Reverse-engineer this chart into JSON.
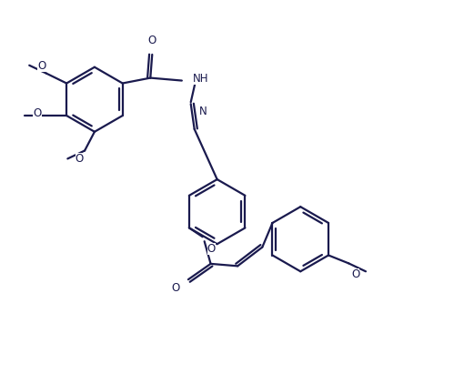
{
  "bg_color": "#ffffff",
  "line_color": "#1a1a4e",
  "line_width": 1.6,
  "font_size": 8.5,
  "figsize": [
    4.99,
    4.11
  ],
  "dpi": 100,
  "xlim": [
    0,
    10
  ],
  "ylim": [
    0,
    8.2
  ]
}
